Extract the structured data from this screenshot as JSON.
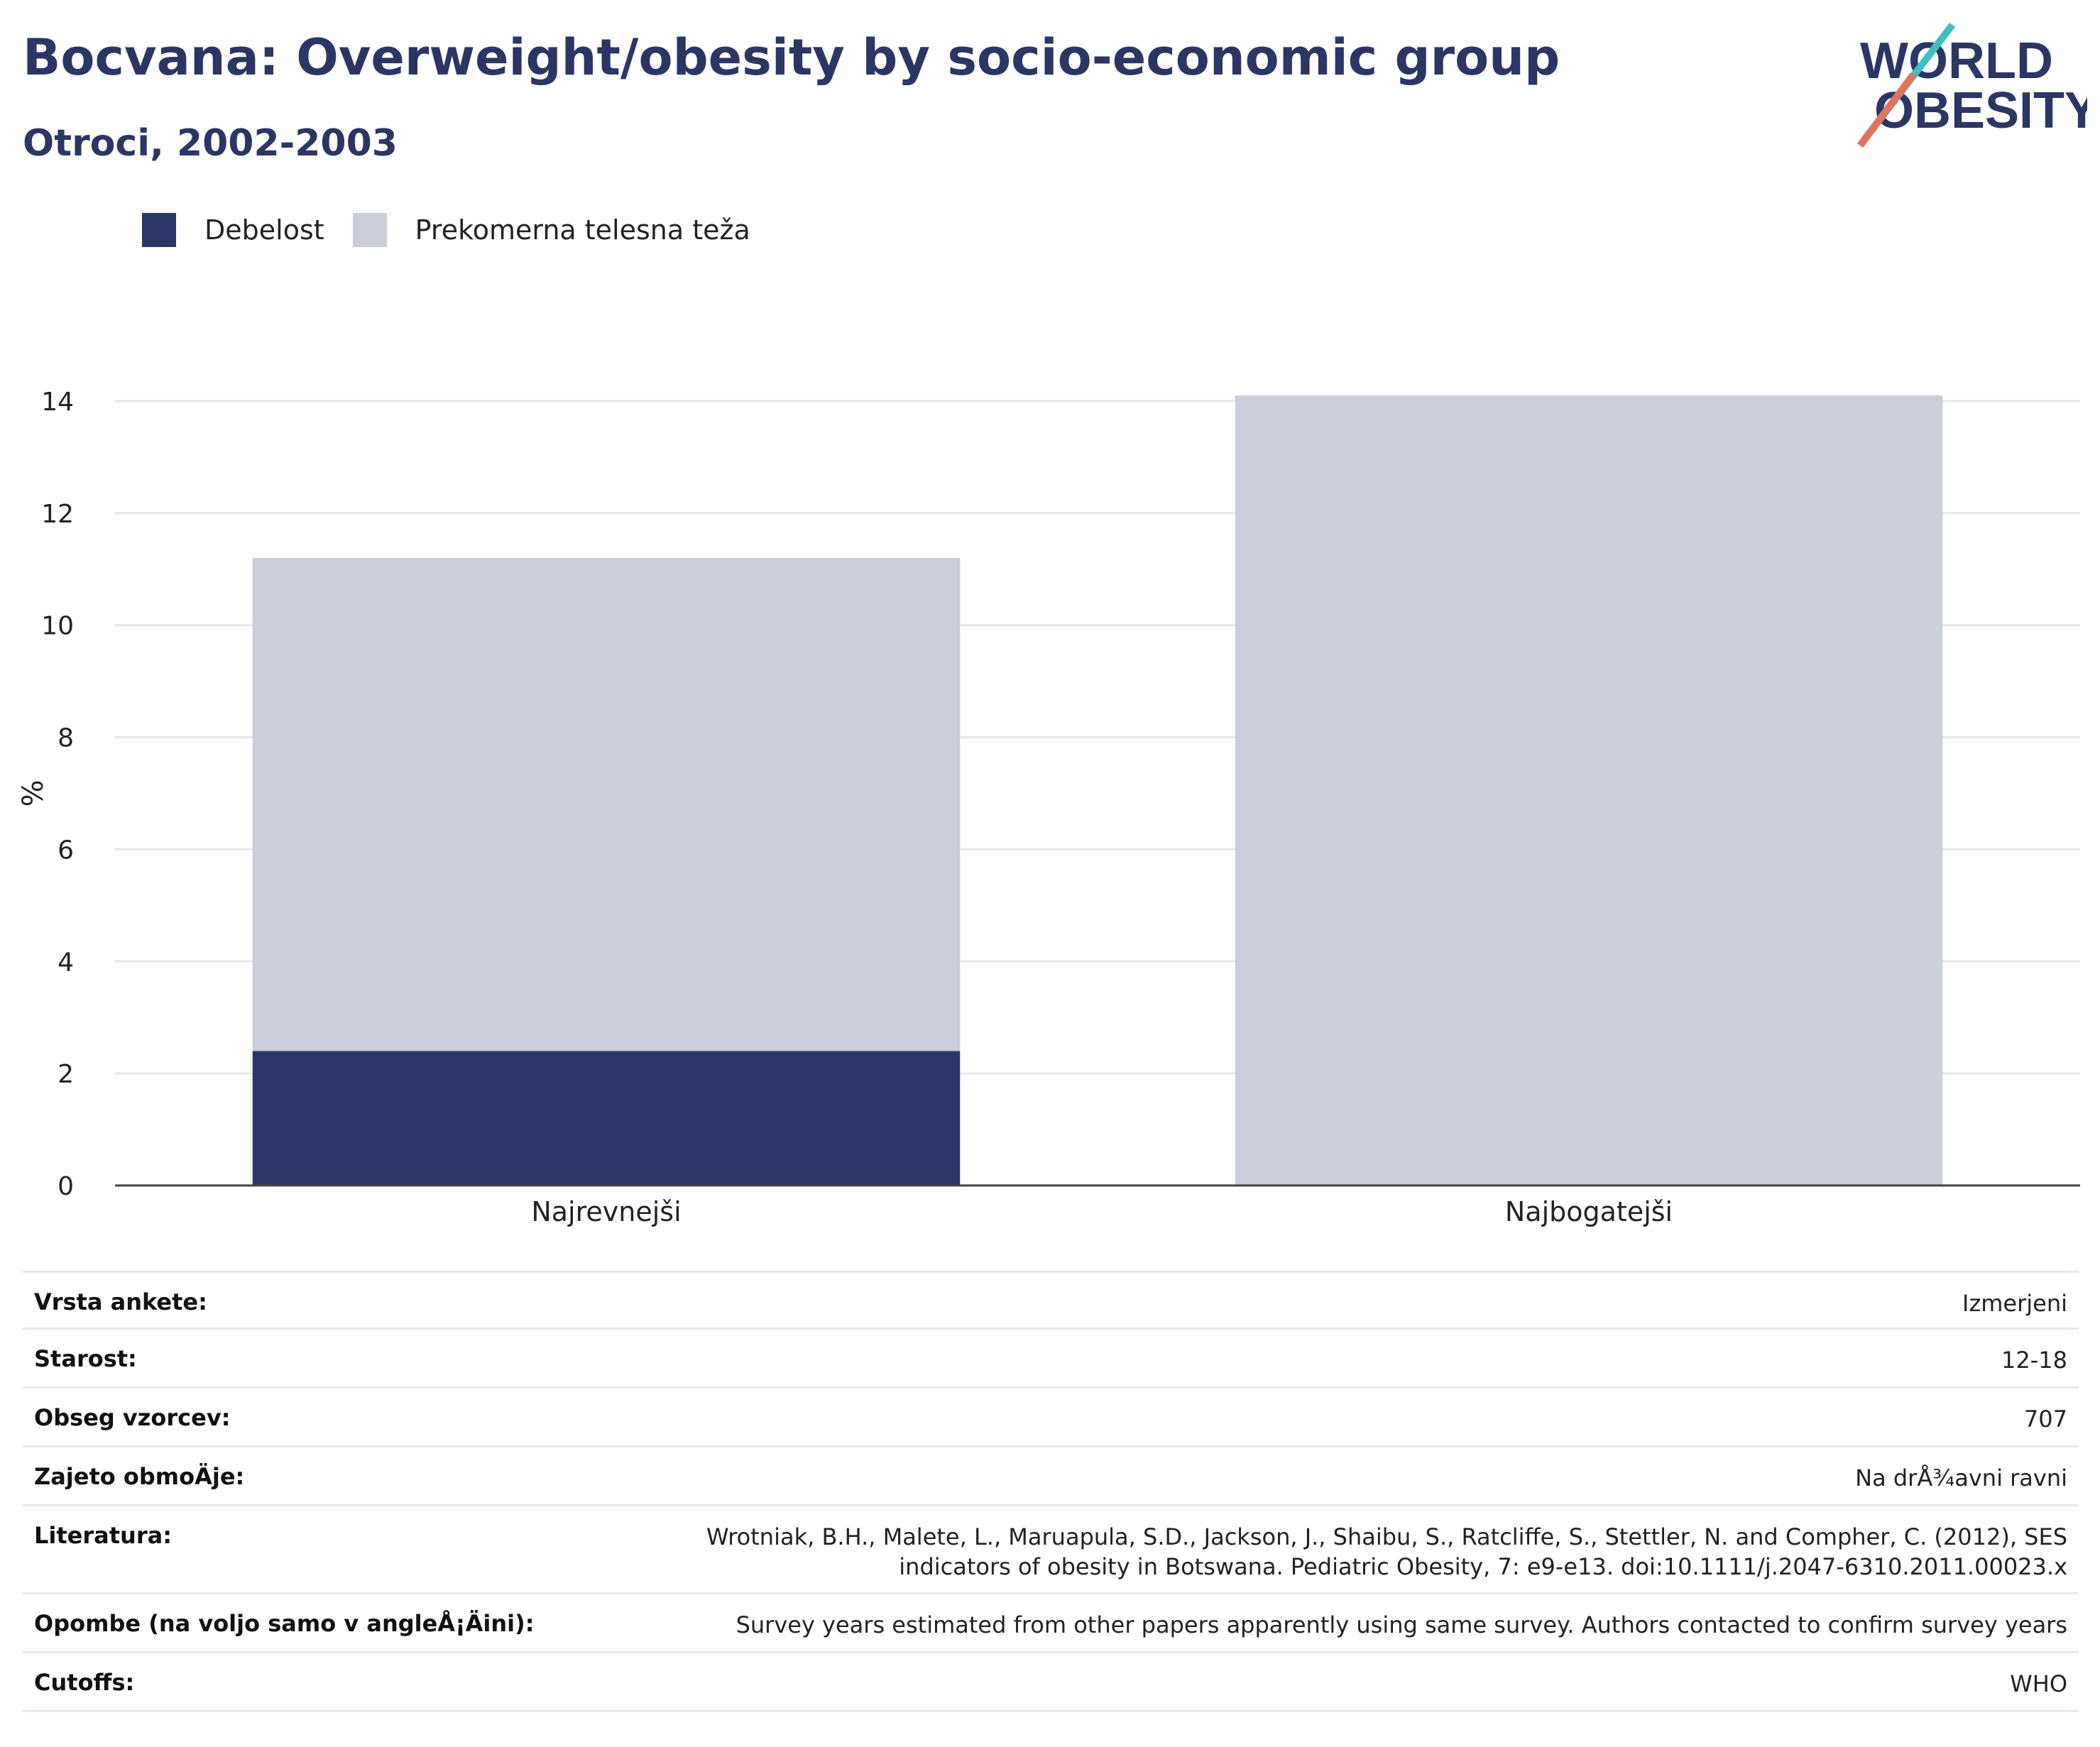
{
  "title": "Bocvana: Overweight/obesity by socio-economic group",
  "subtitle": "Otroci, 2002-2003",
  "logo": {
    "line1": "WORLD",
    "line2": "OBESITY"
  },
  "colors": {
    "obesity": "#2b3664",
    "overweight": "#cbcdd8",
    "text_dark": "#2b3664",
    "logo_teal": "#3fbfc0",
    "logo_coral": "#e3735e"
  },
  "legend": [
    {
      "label": "Debelost",
      "color": "#2b3664"
    },
    {
      "label": "Prekomerna telesna teža",
      "color": "#cbcdd8"
    }
  ],
  "chart_data": {
    "type": "bar",
    "stacked": true,
    "categories": [
      "Najrevnejši",
      "Najbogatejši"
    ],
    "series": [
      {
        "name": "Debelost",
        "values": [
          2.4,
          0
        ]
      },
      {
        "name": "Prekomerna telesna teža",
        "values": [
          8.8,
          14.1
        ]
      }
    ],
    "ylabel": "%",
    "ylim": [
      0,
      14
    ],
    "yticks": [
      0,
      2,
      4,
      6,
      8,
      10,
      12,
      14
    ],
    "grid": true,
    "legend_position": "top-left"
  },
  "meta": [
    {
      "label": "Vrsta ankete:",
      "value": "Izmerjeni"
    },
    {
      "label": "Starost:",
      "value": "12-18"
    },
    {
      "label": "Obseg vzorcev:",
      "value": "707"
    },
    {
      "label": "Zajeto obmoÄje:",
      "value": "Na drÅ¾avni ravni"
    },
    {
      "label": "Literatura:",
      "value": "Wrotniak, B.H., Malete, L., Maruapula, S.D., Jackson, J., Shaibu, S., Ratcliffe, S., Stettler, N. and Compher, C. (2012), SES indicators of obesity in Botswana. Pediatric Obesity, 7: e9-e13. doi:10.1111/j.2047-6310.2011.00023.x"
    },
    {
      "label": "Opombe (na voljo samo v angleÅ¡Äini):",
      "value": "Survey years estimated from other papers apparently using same survey. Authors contacted to confirm survey years"
    },
    {
      "label": "Cutoffs:",
      "value": "WHO"
    }
  ]
}
